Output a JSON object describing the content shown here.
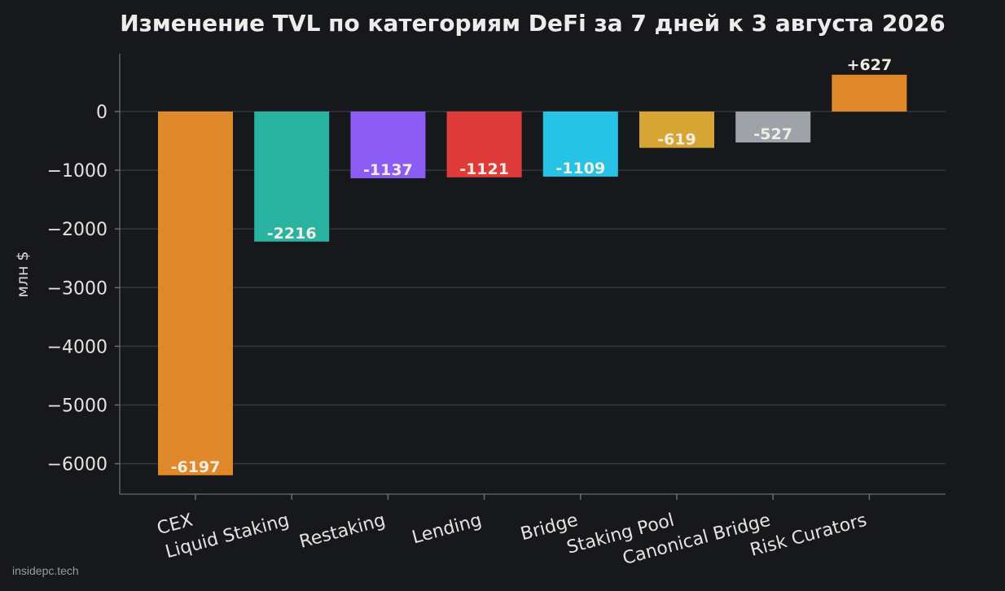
{
  "watermark": "insidepc.tech",
  "chart_data": {
    "type": "bar",
    "title": "Изменение TVL по категориям DeFi за 7 дней к 3 августа 2026",
    "xlabel": "",
    "ylabel": "млн $",
    "categories": [
      "CEX",
      "Liquid Staking",
      "Restaking",
      "Lending",
      "Bridge",
      "Staking Pool",
      "Canonical Bridge",
      "Risk Curators"
    ],
    "values": [
      -6197,
      -2216,
      -1137,
      -1121,
      -1109,
      -619,
      -527,
      627
    ],
    "value_labels": [
      "-6197",
      "-2216",
      "-1137",
      "-1121",
      "-1109",
      "-619",
      "-527",
      "+627"
    ],
    "colors": [
      "#e0892b",
      "#2ab3a0",
      "#8c5cf5",
      "#df3b3b",
      "#26c3e6",
      "#d6a534",
      "#9ea3aa",
      "#e0892b"
    ],
    "ylim": [
      -6500,
      1000
    ],
    "yticks": [
      0,
      -1000,
      -2000,
      -3000,
      -4000,
      -5000,
      -6000
    ],
    "ytick_labels": [
      "0",
      "−1000",
      "−2000",
      "−3000",
      "−4000",
      "−5000",
      "−6000"
    ],
    "grid": true,
    "legend": "none"
  }
}
